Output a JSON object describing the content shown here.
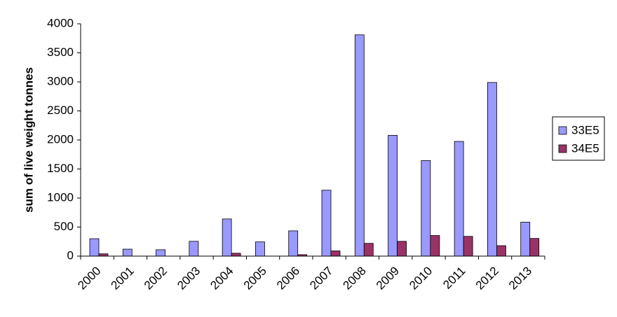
{
  "chart_data": {
    "type": "bar",
    "categories": [
      "2000",
      "2001",
      "2002",
      "2003",
      "2004",
      "2005",
      "2006",
      "2007",
      "2008",
      "2009",
      "2010",
      "2011",
      "2012",
      "2013"
    ],
    "series": [
      {
        "name": "33E5",
        "color": "#9999ff",
        "values": [
          300,
          120,
          110,
          255,
          640,
          245,
          435,
          1135,
          3810,
          2080,
          1645,
          1975,
          2990,
          585
        ]
      },
      {
        "name": "34E5",
        "color": "#993366",
        "values": [
          40,
          0,
          0,
          0,
          50,
          0,
          25,
          90,
          220,
          255,
          355,
          340,
          180,
          305
        ]
      }
    ],
    "title": "",
    "xlabel": "",
    "ylabel": "sum of live weight tonnes",
    "ylim": [
      0,
      4000
    ],
    "yticks": [
      0,
      500,
      1000,
      1500,
      2000,
      2500,
      3000,
      3500,
      4000
    ],
    "grid": false,
    "legend": "right"
  }
}
